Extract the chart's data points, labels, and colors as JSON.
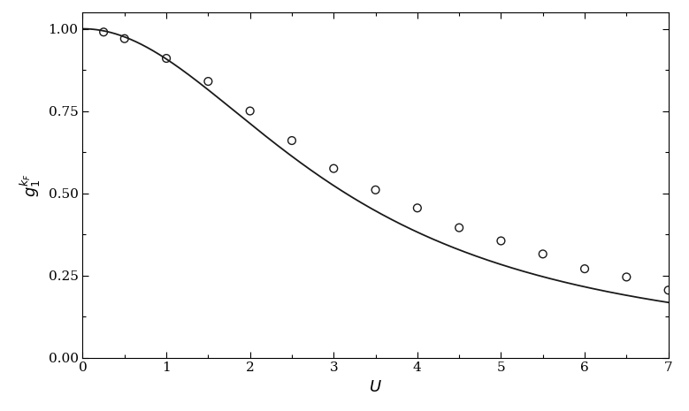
{
  "title": "",
  "xlabel": "$U$",
  "ylabel": "$g_1^{k_F}$",
  "xlim": [
    0,
    7
  ],
  "ylim": [
    0,
    1.05
  ],
  "xticks": [
    0,
    1,
    2,
    3,
    4,
    5,
    6,
    7
  ],
  "yticks": [
    0,
    0.25,
    0.5,
    0.75,
    1
  ],
  "scatter_x": [
    0.25,
    0.5,
    1.0,
    1.5,
    2.0,
    2.5,
    3.0,
    3.5,
    4.0,
    4.5,
    5.0,
    5.5,
    6.0,
    6.5,
    7.0
  ],
  "scatter_y": [
    0.99,
    0.97,
    0.91,
    0.84,
    0.75,
    0.66,
    0.575,
    0.51,
    0.455,
    0.395,
    0.355,
    0.315,
    0.27,
    0.245,
    0.205
  ],
  "curve_color": "#1a1a1a",
  "scatter_color": "none",
  "scatter_edgecolor": "#1a1a1a",
  "scatter_size": 40,
  "scatter_linewidth": 1.0,
  "line_linewidth": 1.3,
  "figsize": [
    7.79,
    4.65
  ],
  "dpi": 100,
  "background_color": "#ffffff"
}
